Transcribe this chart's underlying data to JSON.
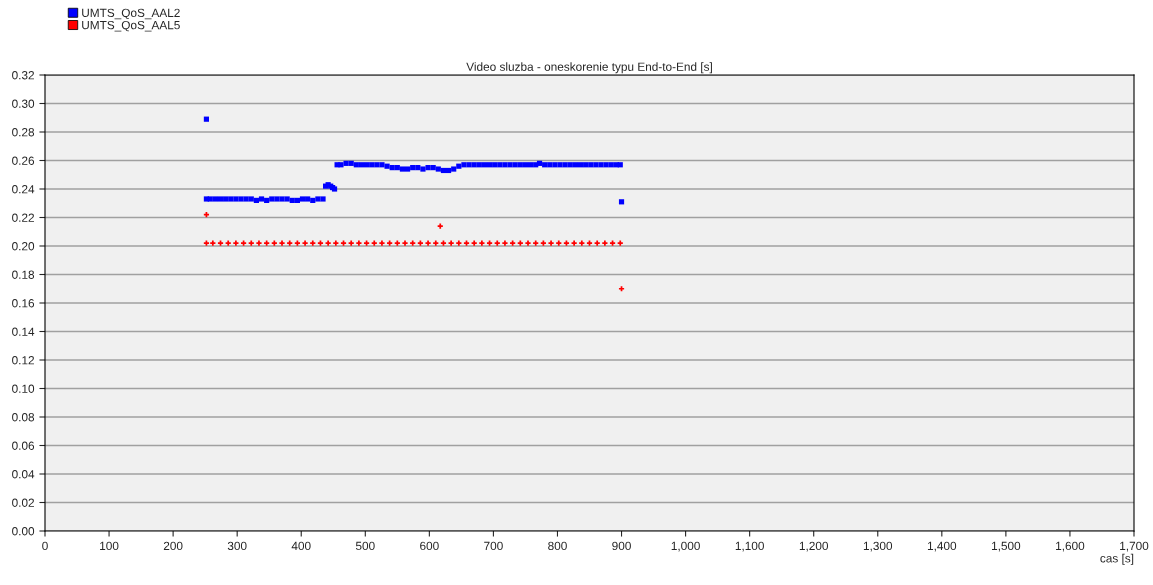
{
  "chart_data": {
    "type": "scatter",
    "title": "Video sluzba - oneskorenie typu End-to-End [s]",
    "xlabel": "cas [s]",
    "xlim": [
      0,
      1700
    ],
    "ylim": [
      0,
      0.32
    ],
    "xticks": [
      0,
      100,
      200,
      300,
      400,
      500,
      600,
      700,
      800,
      900,
      {
        "value": 1000,
        "label": "1,000"
      },
      {
        "value": 1100,
        "label": "1,100"
      },
      {
        "value": 1200,
        "label": "1,200"
      },
      {
        "value": 1300,
        "label": "1,300"
      },
      {
        "value": 1400,
        "label": "1,400"
      },
      {
        "value": 1500,
        "label": "1,500"
      },
      {
        "value": 1600,
        "label": "1,600"
      },
      {
        "value": 1700,
        "label": "1,700"
      }
    ],
    "yticks": [
      {
        "value": 0,
        "label": "0.00"
      },
      {
        "value": 0.02,
        "label": "0.02"
      },
      {
        "value": 0.04,
        "label": "0.04"
      },
      {
        "value": 0.06,
        "label": "0.06"
      },
      {
        "value": 0.08,
        "label": "0.08"
      },
      {
        "value": 0.1,
        "label": "0.10"
      },
      {
        "value": 0.12,
        "label": "0.12"
      },
      {
        "value": 0.14,
        "label": "0.14"
      },
      {
        "value": 0.16,
        "label": "0.16"
      },
      {
        "value": 0.18,
        "label": "0.18"
      },
      {
        "value": 0.2,
        "label": "0.20"
      },
      {
        "value": 0.22,
        "label": "0.22"
      },
      {
        "value": 0.24,
        "label": "0.24"
      },
      {
        "value": 0.26,
        "label": "0.26"
      },
      {
        "value": 0.28,
        "label": "0.28"
      },
      {
        "value": 0.3,
        "label": "0.30"
      },
      {
        "value": 0.32,
        "label": "0.32"
      }
    ],
    "grid": "y",
    "legend": "top left",
    "series": [
      {
        "name": "UMTS_QoS_AAL2",
        "color": "#0000ff",
        "marker": "square",
        "x": [
          252,
          252,
          258,
          266,
          274,
          282,
          290,
          298,
          306,
          314,
          322,
          330,
          338,
          346,
          354,
          362,
          370,
          378,
          386,
          394,
          402,
          410,
          418,
          426,
          434,
          438,
          442,
          446,
          449,
          452,
          456,
          462,
          470,
          478,
          486,
          494,
          502,
          510,
          518,
          526,
          534,
          542,
          550,
          558,
          566,
          574,
          582,
          590,
          598,
          606,
          614,
          622,
          630,
          638,
          646,
          654,
          662,
          670,
          678,
          686,
          694,
          702,
          710,
          718,
          726,
          734,
          742,
          750,
          758,
          766,
          772,
          780,
          788,
          796,
          804,
          812,
          820,
          828,
          836,
          844,
          852,
          860,
          868,
          876,
          884,
          892,
          898,
          900
        ],
        "values": [
          0.289,
          0.233,
          0.233,
          0.233,
          0.233,
          0.233,
          0.233,
          0.233,
          0.233,
          0.233,
          0.233,
          0.232,
          0.233,
          0.232,
          0.233,
          0.233,
          0.233,
          0.233,
          0.232,
          0.232,
          0.233,
          0.233,
          0.232,
          0.233,
          0.233,
          0.242,
          0.243,
          0.242,
          0.241,
          0.24,
          0.257,
          0.257,
          0.258,
          0.258,
          0.257,
          0.257,
          0.257,
          0.257,
          0.257,
          0.257,
          0.256,
          0.255,
          0.255,
          0.254,
          0.254,
          0.255,
          0.255,
          0.254,
          0.255,
          0.255,
          0.254,
          0.253,
          0.253,
          0.254,
          0.256,
          0.257,
          0.257,
          0.257,
          0.257,
          0.257,
          0.257,
          0.257,
          0.257,
          0.257,
          0.257,
          0.257,
          0.257,
          0.257,
          0.257,
          0.257,
          0.258,
          0.257,
          0.257,
          0.257,
          0.257,
          0.257,
          0.257,
          0.257,
          0.257,
          0.257,
          0.257,
          0.257,
          0.257,
          0.257,
          0.257,
          0.257,
          0.257,
          0.231
        ]
      },
      {
        "name": "UMTS_QoS_AAL5",
        "color": "#ff0000",
        "marker": "cross",
        "x": [
          252,
          252,
          262,
          274,
          286,
          298,
          310,
          322,
          334,
          346,
          358,
          370,
          382,
          394,
          406,
          418,
          430,
          442,
          454,
          466,
          478,
          490,
          502,
          514,
          526,
          538,
          550,
          562,
          574,
          586,
          598,
          610,
          617,
          622,
          634,
          646,
          658,
          670,
          682,
          694,
          706,
          718,
          730,
          742,
          754,
          766,
          778,
          790,
          802,
          814,
          826,
          838,
          850,
          862,
          874,
          886,
          898,
          900
        ],
        "values": [
          0.222,
          0.202,
          0.202,
          0.202,
          0.202,
          0.202,
          0.202,
          0.202,
          0.202,
          0.202,
          0.202,
          0.202,
          0.202,
          0.202,
          0.202,
          0.202,
          0.202,
          0.202,
          0.202,
          0.202,
          0.202,
          0.202,
          0.202,
          0.202,
          0.202,
          0.202,
          0.202,
          0.202,
          0.202,
          0.202,
          0.202,
          0.202,
          0.214,
          0.202,
          0.202,
          0.202,
          0.202,
          0.202,
          0.202,
          0.202,
          0.202,
          0.202,
          0.202,
          0.202,
          0.202,
          0.202,
          0.202,
          0.202,
          0.202,
          0.202,
          0.202,
          0.202,
          0.202,
          0.202,
          0.202,
          0.202,
          0.202,
          0.17
        ]
      }
    ]
  }
}
